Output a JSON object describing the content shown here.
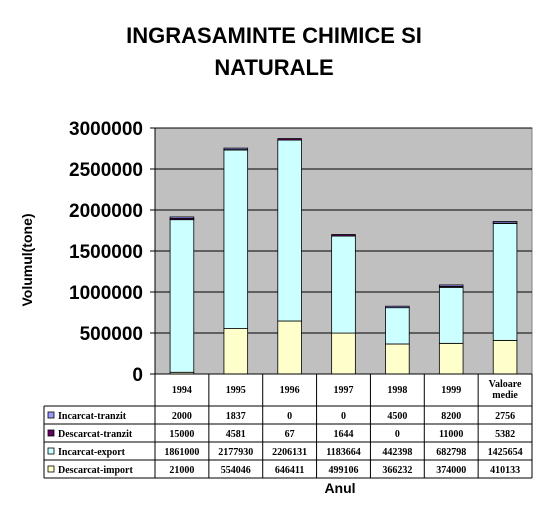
{
  "chart_data": {
    "type": "bar",
    "stacked": true,
    "title": "INGRASAMINTE CHIMICE SI\nNATURALE",
    "xlabel": "Anul",
    "ylabel": "Volumul(tone)",
    "ylim": [
      0,
      3000000
    ],
    "yticks": [
      "0",
      "500000",
      "1000000",
      "1500000",
      "2000000",
      "2500000",
      "3000000"
    ],
    "grid": true,
    "categories": [
      "1994",
      "1995",
      "1996",
      "1997",
      "1998",
      "1999",
      "Valoare medie"
    ],
    "series": [
      {
        "name": "Descarcat-import",
        "color": "#ffffcc",
        "values": [
          21000,
          554046,
          646411,
          499106,
          366232,
          374000,
          410133
        ]
      },
      {
        "name": "Incarcat-export",
        "color": "#ccffff",
        "values": [
          1861000,
          2177930,
          2206131,
          1183664,
          442398,
          682798,
          1425654
        ]
      },
      {
        "name": "Descarcat-tranzit",
        "color": "#660066",
        "values": [
          15000,
          4581,
          67,
          1644,
          0,
          11000,
          5382
        ]
      },
      {
        "name": "Incarcat-tranzit",
        "color": "#9999ff",
        "values": [
          2000,
          1837,
          0,
          0,
          4500,
          8200,
          2756
        ]
      }
    ],
    "table": {
      "rows": [
        {
          "label": "Incarcat-tranzit",
          "color": "#9999ff",
          "cells": [
            "2000",
            "1837",
            "0",
            "0",
            "4500",
            "8200",
            "2756"
          ]
        },
        {
          "label": "Descarcat-tranzit",
          "color": "#660066",
          "cells": [
            "15000",
            "4581",
            "67",
            "1644",
            "0",
            "11000",
            "5382"
          ]
        },
        {
          "label": "Incarcat-export",
          "color": "#ccffff",
          "cells": [
            "1861000",
            "2177930",
            "2206131",
            "1183664",
            "442398",
            "682798",
            "1425654"
          ]
        },
        {
          "label": "Descarcat-import",
          "color": "#ffffcc",
          "cells": [
            "21000",
            "554046",
            "646411",
            "499106",
            "366232",
            "374000",
            "410133"
          ]
        }
      ]
    },
    "plot_background": "#c0c0c0"
  }
}
